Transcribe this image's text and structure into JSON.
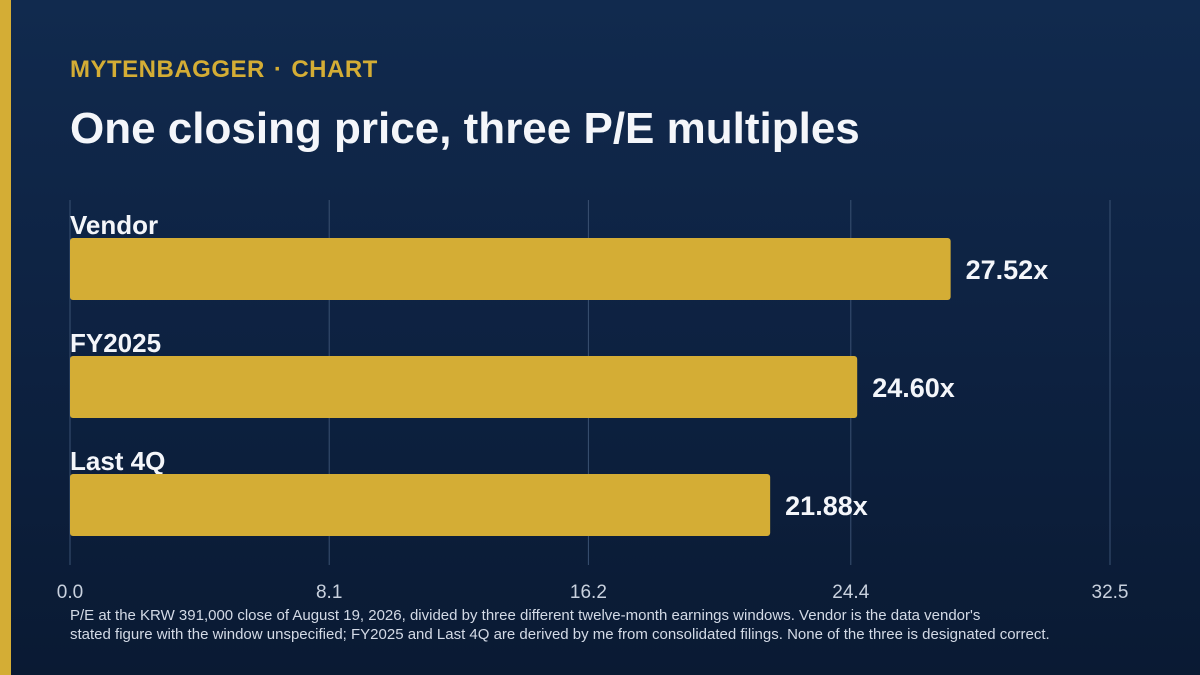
{
  "header": {
    "brand": "MYTENBAGGER",
    "separator": "·",
    "section": "CHART",
    "title": "One closing price, three P/E multiples"
  },
  "chart_data": {
    "type": "bar",
    "orientation": "horizontal",
    "categories": [
      "Vendor",
      "FY2025",
      "Last 4Q"
    ],
    "values": [
      27.52,
      24.6,
      21.88
    ],
    "value_labels": [
      "27.52x",
      "24.60x",
      "21.88x"
    ],
    "xlim": [
      0,
      32.5
    ],
    "xticks": [
      0,
      8.1,
      16.2,
      24.4,
      32.5
    ],
    "xtick_labels": [
      "0.0",
      "8.1",
      "16.2",
      "24.4",
      "32.5"
    ],
    "grid": true,
    "colors": {
      "bar": "#d4ad35",
      "grid": "#3a5172",
      "text": "#f4f6fa"
    }
  },
  "footnote": {
    "line1": "P/E at the KRW 391,000 close of August 19, 2026, divided by three different twelve-month earnings windows. Vendor is the data vendor's",
    "line2": "stated figure with the window unspecified; FY2025 and Last 4Q are derived by me from consolidated filings. None of the three is designated correct."
  }
}
